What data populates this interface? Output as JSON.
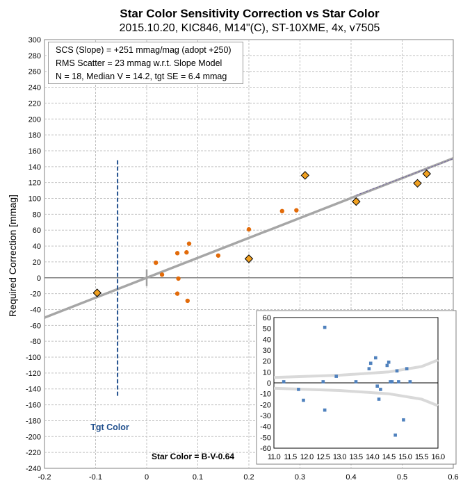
{
  "title": "Star Color Sensitivity Correction vs Star Color",
  "subtitle": "2015.10.20, KIC846, M14\"(C), ST-10XME, 4x, v7505",
  "stats": {
    "line1": "SCS (Slope)  =  +251 mmag/mag (adopt +250)",
    "line2": "RMS Scatter = 23 mmag w.r.t. Slope Model",
    "line3": "N = 18,  Median V = 14.2, tgt SE = 6.4 mmag"
  },
  "annotations": {
    "tgt_color": "Tgt Color",
    "star_color": "Star Color = B-V-0.64"
  },
  "colors": {
    "grid": "#c0c0c0",
    "zero_line": "#808080",
    "fit_line": "#a6a6a6",
    "dot": "#e26b0a",
    "diamond_fill": "#f0a020",
    "tgt_line": "#1f4e8c",
    "inset_marker": "#4f81bd",
    "inset_band": "#d9d9d9",
    "dashed_trend": "#7060a0"
  },
  "chart_data": [
    {
      "type": "scatter",
      "ylabel": "Required Correction [mmag]",
      "xlabel": "",
      "xlim": [
        -0.2,
        0.6
      ],
      "ylim": [
        -240,
        300
      ],
      "x_ticks": [
        "-0.2",
        "-0.1",
        "0",
        "0.1",
        "0.2",
        "0.3",
        "0.4",
        "0.5",
        "0.6"
      ],
      "y_ticks": [
        "300",
        "280",
        "260",
        "240",
        "220",
        "200",
        "180",
        "160",
        "140",
        "120",
        "100",
        "80",
        "60",
        "40",
        "20",
        "0",
        "-20",
        "-40",
        "-60",
        "-80",
        "-100",
        "-120",
        "-140",
        "-160",
        "-180",
        "-200",
        "-220",
        "-240"
      ],
      "grid": true,
      "series": [
        {
          "marker": "dot",
          "points": [
            [
              0.018,
              19
            ],
            [
              0.03,
              4
            ],
            [
              0.06,
              31
            ],
            [
              0.06,
              -20
            ],
            [
              0.062,
              -1
            ],
            [
              0.078,
              32
            ],
            [
              0.08,
              -29
            ],
            [
              0.083,
              43
            ],
            [
              0.14,
              28
            ],
            [
              0.2,
              61
            ],
            [
              0.265,
              84
            ],
            [
              0.293,
              85
            ]
          ]
        },
        {
          "marker": "diamond",
          "points": [
            [
              -0.097,
              -19
            ],
            [
              0.2,
              24
            ],
            [
              0.31,
              129
            ],
            [
              0.41,
              96
            ],
            [
              0.53,
              119
            ],
            [
              0.548,
              131
            ]
          ]
        }
      ],
      "fit_line": {
        "slope": 251,
        "intercept": 0,
        "x_range": [
          -0.2,
          0.6
        ]
      },
      "dashed_trend": [
        [
          0.41,
          104
        ],
        [
          0.6,
          150
        ]
      ],
      "target_color_x": -0.057,
      "target_line_y": [
        -150,
        148
      ]
    },
    {
      "type": "scatter",
      "inset": true,
      "xlim": [
        11.0,
        16.0
      ],
      "ylim": [
        -60,
        60
      ],
      "x_ticks": [
        "11.0",
        "11.5",
        "12.0",
        "12.5",
        "13.0",
        "13.5",
        "14.0",
        "14.5",
        "15.0",
        "15.5",
        "16.0"
      ],
      "y_ticks": [
        "60",
        "50",
        "40",
        "30",
        "20",
        "10",
        "0",
        "-10",
        "-20",
        "-30",
        "-40",
        "-50",
        "-60"
      ],
      "points": [
        [
          11.3,
          1
        ],
        [
          11.75,
          -6
        ],
        [
          11.9,
          -16
        ],
        [
          12.5,
          1
        ],
        [
          12.55,
          -25
        ],
        [
          12.55,
          51
        ],
        [
          12.9,
          6
        ],
        [
          13.5,
          1
        ],
        [
          13.9,
          13
        ],
        [
          13.95,
          18
        ],
        [
          14.1,
          23
        ],
        [
          14.15,
          -3
        ],
        [
          14.2,
          -15
        ],
        [
          14.25,
          -6
        ],
        [
          14.45,
          16
        ],
        [
          14.5,
          19
        ],
        [
          14.55,
          1
        ],
        [
          14.6,
          1
        ],
        [
          14.7,
          -48
        ],
        [
          14.75,
          11
        ],
        [
          14.8,
          1
        ],
        [
          14.95,
          -34
        ],
        [
          15.05,
          13
        ],
        [
          15.15,
          1
        ]
      ],
      "band_upper": [
        [
          11.0,
          5
        ],
        [
          13.0,
          7
        ],
        [
          14.5,
          10
        ],
        [
          15.5,
          15
        ],
        [
          16.0,
          21
        ]
      ],
      "band_lower": [
        [
          11.0,
          -5
        ],
        [
          13.0,
          -7
        ],
        [
          14.5,
          -10
        ],
        [
          15.5,
          -15
        ],
        [
          16.0,
          -21
        ]
      ]
    }
  ]
}
